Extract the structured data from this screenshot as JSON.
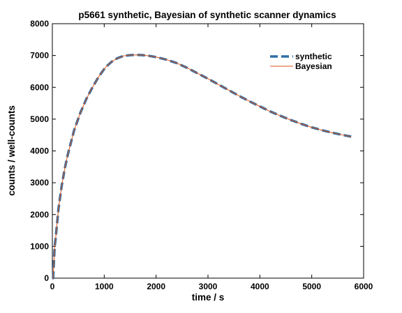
{
  "chart_data": {
    "type": "line",
    "title": "p5661 synthetic, Bayesian of synthetic scanner dynamics",
    "xlabel": "time / s",
    "ylabel": "counts / well-counts",
    "xlim": [
      0,
      6000
    ],
    "ylim": [
      0,
      8000
    ],
    "xticks": [
      "0",
      "1000",
      "2000",
      "3000",
      "4000",
      "5000",
      "6000"
    ],
    "yticks": [
      "0",
      "1000",
      "2000",
      "3000",
      "4000",
      "5000",
      "6000",
      "7000",
      "8000"
    ],
    "grid": false,
    "legend_position": "top-right",
    "series": [
      {
        "name": "synthetic",
        "style": "dashed",
        "color": "#2f6fa7",
        "x": [
          0,
          15,
          30,
          45,
          60,
          90,
          120,
          180,
          240,
          300,
          420,
          540,
          660,
          780,
          900,
          1020,
          1140,
          1260,
          1380,
          1500,
          1620,
          1740,
          1860,
          2000,
          2200,
          2400,
          2600,
          2800,
          3000,
          3200,
          3400,
          3600,
          3800,
          4000,
          4200,
          4400,
          4600,
          4800,
          5000,
          5200,
          5400,
          5600,
          5760
        ],
        "y": [
          0,
          0,
          500,
          1000,
          1200,
          1700,
          2200,
          2900,
          3450,
          3900,
          4650,
          5200,
          5650,
          6020,
          6350,
          6620,
          6800,
          6920,
          6990,
          7010,
          7020,
          7010,
          6990,
          6950,
          6870,
          6760,
          6610,
          6440,
          6270,
          6090,
          5910,
          5730,
          5560,
          5400,
          5240,
          5100,
          4970,
          4850,
          4740,
          4650,
          4570,
          4500,
          4450
        ]
      },
      {
        "name": "Bayesian",
        "style": "solid",
        "color": "#d95319",
        "x": [
          0,
          15,
          30,
          45,
          60,
          90,
          120,
          180,
          240,
          300,
          420,
          540,
          660,
          780,
          900,
          1020,
          1140,
          1260,
          1380,
          1500,
          1620,
          1740,
          1860,
          2000,
          2200,
          2400,
          2600,
          2800,
          3000,
          3200,
          3400,
          3600,
          3800,
          4000,
          4200,
          4400,
          4600,
          4800,
          5000,
          5200,
          5400,
          5600,
          5760
        ],
        "y": [
          0,
          0,
          500,
          1000,
          1200,
          1700,
          2200,
          2900,
          3450,
          3900,
          4650,
          5200,
          5650,
          6020,
          6350,
          6620,
          6800,
          6920,
          6990,
          7010,
          7020,
          7010,
          6990,
          6950,
          6870,
          6760,
          6610,
          6440,
          6270,
          6090,
          5910,
          5730,
          5560,
          5400,
          5240,
          5100,
          4970,
          4850,
          4740,
          4650,
          4570,
          4500,
          4450
        ]
      }
    ]
  }
}
